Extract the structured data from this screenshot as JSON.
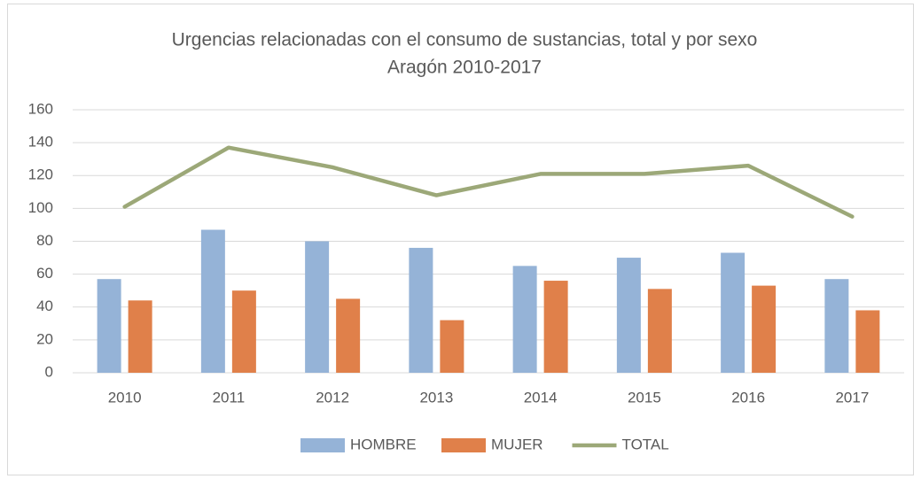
{
  "chart_data": {
    "type": "bar",
    "title": "Urgencias relacionadas con el consumo de sustancias, total y por sexo",
    "subtitle": "Aragón 2010-2017",
    "categories": [
      "2010",
      "2011",
      "2012",
      "2013",
      "2014",
      "2015",
      "2016",
      "2017"
    ],
    "series": [
      {
        "name": "HOMBRE",
        "type": "bar",
        "color": "#95b3d7",
        "values": [
          57,
          87,
          80,
          76,
          65,
          70,
          73,
          57
        ]
      },
      {
        "name": "MUJER",
        "type": "bar",
        "color": "#e0804a",
        "values": [
          44,
          50,
          45,
          32,
          56,
          51,
          53,
          38
        ]
      },
      {
        "name": "TOTAL",
        "type": "line",
        "color": "#9ca878",
        "values": [
          101,
          137,
          125,
          108,
          121,
          121,
          126,
          95
        ]
      }
    ],
    "ylim": [
      0,
      160
    ],
    "yticks": [
      0,
      20,
      40,
      60,
      80,
      100,
      120,
      140,
      160
    ],
    "grid": true,
    "legend": "bottom"
  }
}
